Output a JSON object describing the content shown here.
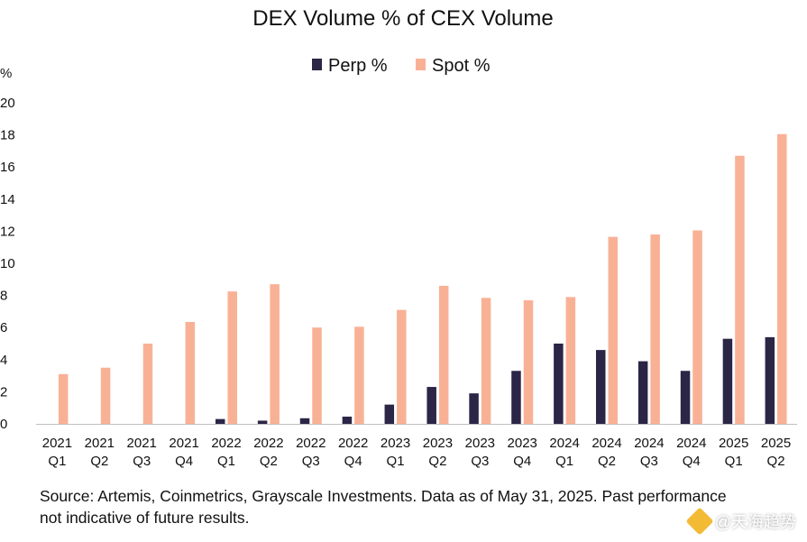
{
  "chart_data": {
    "type": "bar",
    "title": "DEX Volume % of CEX Volume",
    "ylabel": "%",
    "xlabel": "",
    "ylim": [
      0,
      20
    ],
    "yticks": [
      0,
      2,
      4,
      6,
      8,
      10,
      12,
      14,
      16,
      18,
      20
    ],
    "legend_position": "top",
    "categories": [
      [
        "2021",
        "Q1"
      ],
      [
        "2021",
        "Q2"
      ],
      [
        "2021",
        "Q3"
      ],
      [
        "2021",
        "Q4"
      ],
      [
        "2022",
        "Q1"
      ],
      [
        "2022",
        "Q2"
      ],
      [
        "2022",
        "Q3"
      ],
      [
        "2022",
        "Q4"
      ],
      [
        "2023",
        "Q1"
      ],
      [
        "2023",
        "Q2"
      ],
      [
        "2023",
        "Q3"
      ],
      [
        "2023",
        "Q4"
      ],
      [
        "2024",
        "Q1"
      ],
      [
        "2024",
        "Q2"
      ],
      [
        "2024",
        "Q3"
      ],
      [
        "2024",
        "Q4"
      ],
      [
        "2025",
        "Q1"
      ],
      [
        "2025",
        "Q2"
      ]
    ],
    "series": [
      {
        "name": "Perp %",
        "color": "#2b2546",
        "values": [
          0,
          0,
          0,
          0,
          0.3,
          0.2,
          0.35,
          0.45,
          1.2,
          2.3,
          1.9,
          3.3,
          5.0,
          4.6,
          3.9,
          3.3,
          5.3,
          5.4
        ]
      },
      {
        "name": "Spot %",
        "color": "#f9b196",
        "values": [
          3.1,
          3.5,
          5.0,
          6.35,
          8.25,
          8.7,
          6.0,
          6.05,
          7.1,
          8.6,
          7.85,
          7.7,
          7.9,
          11.65,
          11.8,
          12.05,
          16.7,
          18.05
        ]
      }
    ]
  },
  "footer": {
    "source": "Source: Artemis, Coinmetrics, Grayscale Investments. Data as of May 31, 2025. Past performance not indicative of future results."
  },
  "watermark": {
    "text": "@天海趋势"
  }
}
